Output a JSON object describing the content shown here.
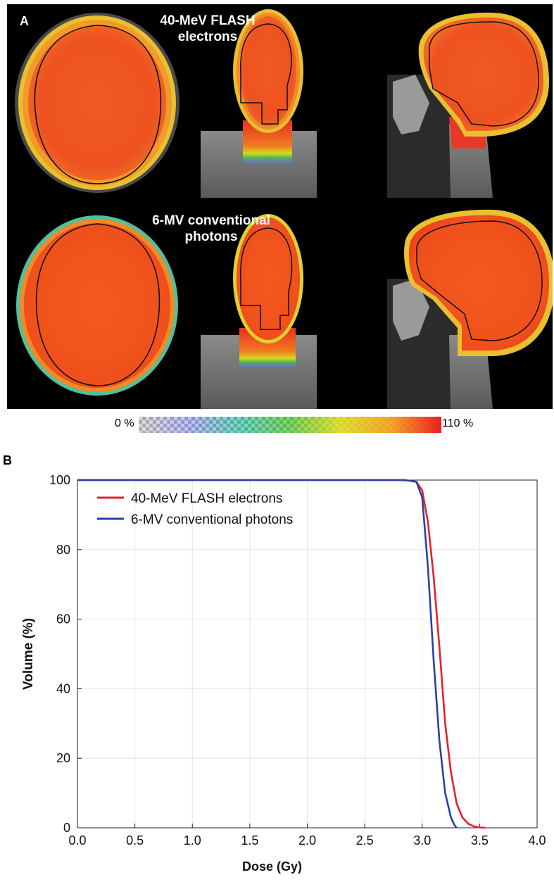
{
  "panel_a": {
    "label": "A",
    "rows": [
      {
        "title_line1": "40-MeV FLASH",
        "title_line2": "electrons"
      },
      {
        "title_line1": "6-MV conventional",
        "title_line2": "photons"
      }
    ],
    "colorbar": {
      "min_label": "0 %",
      "max_label": "110 %",
      "colors": [
        "#b0b0b0",
        "#8f8fd8",
        "#3fb8a0",
        "#58c040",
        "#d8d820",
        "#f0a020",
        "#e82020"
      ]
    }
  },
  "panel_b": {
    "label": "B"
  },
  "chart_data": {
    "type": "line",
    "xlabel": "Dose (Gy)",
    "ylabel": "Volume (%)",
    "xlim": [
      0,
      4
    ],
    "ylim": [
      0,
      100
    ],
    "xticks": [
      "0.0",
      "0.5",
      "1.0",
      "1.5",
      "2.0",
      "2.5",
      "3.0",
      "3.5",
      "4.0"
    ],
    "yticks": [
      "0",
      "20",
      "40",
      "60",
      "80",
      "100"
    ],
    "grid": true,
    "legend_position": "top-left",
    "series": [
      {
        "name": "40-MeV FLASH electrons",
        "color": "#e8202a",
        "x": [
          0,
          2.8,
          2.9,
          2.95,
          3.0,
          3.05,
          3.1,
          3.15,
          3.2,
          3.25,
          3.3,
          3.35,
          3.4,
          3.45,
          3.5,
          3.55
        ],
        "y": [
          100,
          100,
          99.8,
          99.5,
          97,
          88,
          72,
          52,
          30,
          16,
          7,
          3,
          1.2,
          0.4,
          0.1,
          0
        ]
      },
      {
        "name": "6-MV conventional photons",
        "color": "#2a40a8",
        "x": [
          0,
          2.85,
          2.95,
          3.0,
          3.05,
          3.1,
          3.15,
          3.2,
          3.25,
          3.28,
          3.3
        ],
        "y": [
          100,
          100,
          99.5,
          95,
          75,
          48,
          25,
          10,
          3,
          0.8,
          0
        ]
      }
    ]
  }
}
